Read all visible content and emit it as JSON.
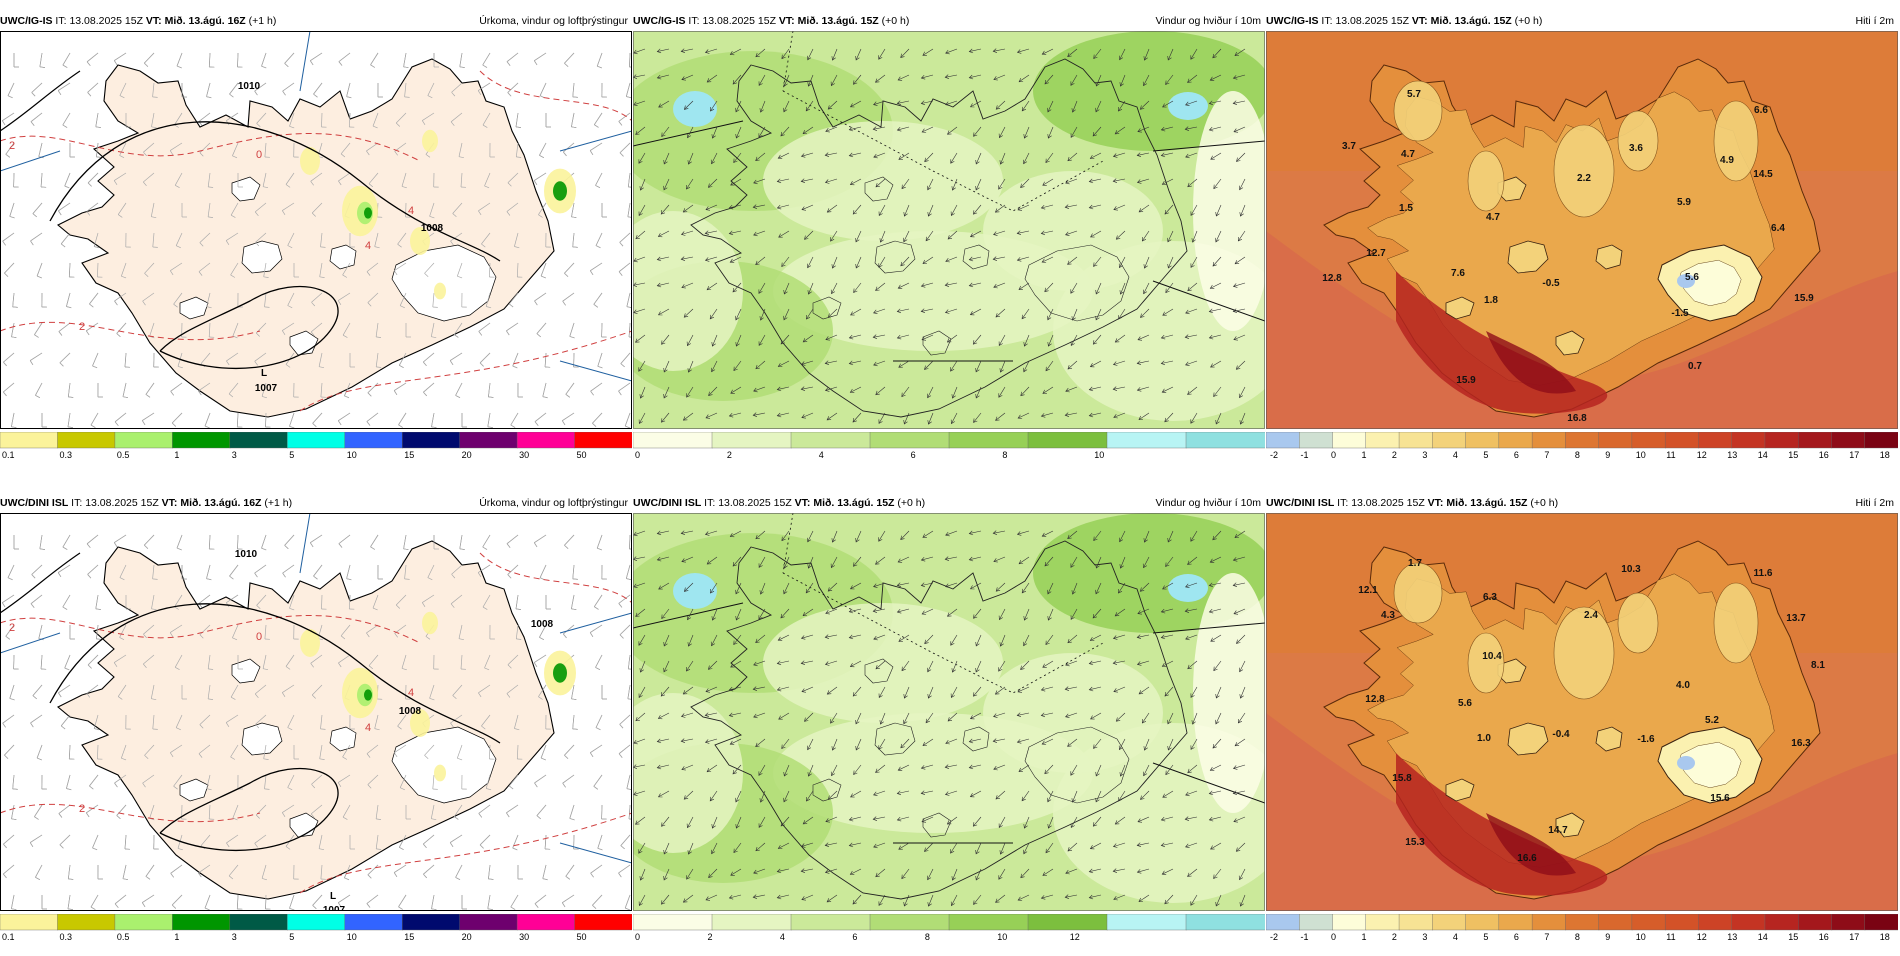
{
  "rows": [
    {
      "model": "UWC/IG-IS",
      "it_label": "IT:",
      "it": "13.08.2025 15Z",
      "vt_label": "VT:",
      "panels": [
        {
          "kind": "precip",
          "vt": "Mið. 13.ágú. 16Z",
          "lead": "(+1 h)",
          "title": "Úrkoma, vindur og loftþrýstingur",
          "legend_colors": [
            "#fbf39b",
            "#c8c800",
            "#aaf06e",
            "#009600",
            "#005a46",
            "#00ffe6",
            "#3264ff",
            "#000a6e",
            "#6e006e",
            "#ff0096",
            "#ff0000"
          ],
          "legend_ticks": [
            "0.1",
            "0.3",
            "0.5",
            "1",
            "3",
            "5",
            "10",
            "15",
            "20",
            "30",
            "50"
          ],
          "pressure_labels": [
            {
              "text": "1008"
            },
            {
              "text": "1007"
            },
            {
              "text": "1010"
            },
            {
              "text": "L"
            }
          ],
          "isotherm_labels": [
            "2",
            "4",
            "0",
            "2",
            "4"
          ]
        },
        {
          "kind": "wind",
          "vt": "Mið. 13.ágú. 15Z",
          "lead": "(+0 h)",
          "title": "Vindur og hviður í 10m",
          "legend_colors": [
            "#fbfde6",
            "#e5f5c2",
            "#cbe99a",
            "#b1dd76",
            "#97d057",
            "#7cbf3e",
            "#b8f4f4",
            "#8fe0e0"
          ],
          "legend_ticks": [
            "0",
            "2",
            "4",
            "6",
            "8",
            "10"
          ]
        },
        {
          "kind": "temp",
          "vt": "Mið. 13.ágú. 15Z",
          "lead": "(+0 h)",
          "title": "Hiti í 2m",
          "legend_colors": [
            "#a9c8ee",
            "#cfe0d2",
            "#fdfdd9",
            "#fbf1b0",
            "#f7e394",
            "#f3d27a",
            "#efc062",
            "#eaa84c",
            "#e48f3c",
            "#dd7632",
            "#d9682d",
            "#d65d2a",
            "#d35228",
            "#cd4326",
            "#c43423",
            "#b62520",
            "#a4181c",
            "#8e0c18",
            "#7a0313"
          ],
          "legend_ticks": [
            "-2",
            "-1",
            "0",
            "1",
            "2",
            "3",
            "4",
            "5",
            "6",
            "7",
            "8",
            "9",
            "10",
            "11",
            "12",
            "13",
            "14",
            "15",
            "16",
            "17",
            "18"
          ],
          "values": [
            {
              "text": "5.7"
            },
            {
              "text": "3.7"
            },
            {
              "text": "4.7"
            },
            {
              "text": "2.2"
            },
            {
              "text": "3.6"
            },
            {
              "text": "6.6"
            },
            {
              "text": "4.9"
            },
            {
              "text": "14.5"
            },
            {
              "text": "5.9"
            },
            {
              "text": "6.4"
            },
            {
              "text": "1.5"
            },
            {
              "text": "4.7"
            },
            {
              "text": "12.7"
            },
            {
              "text": "12.8"
            },
            {
              "text": "7.6"
            },
            {
              "text": "1.8"
            },
            {
              "text": "-0.5"
            },
            {
              "text": "5.6"
            },
            {
              "text": "15.9"
            },
            {
              "text": "-1.5"
            },
            {
              "text": "15.9"
            },
            {
              "text": "0.7"
            },
            {
              "text": "16.8"
            }
          ]
        }
      ]
    },
    {
      "model": "UWC/DINI ISL",
      "it_label": "IT:",
      "it": "13.08.2025 15Z",
      "vt_label": "VT:",
      "panels": [
        {
          "kind": "precip",
          "vt": "Mið. 13.ágú. 16Z",
          "lead": "(+1 h)",
          "title": "Úrkoma, vindur og loftþrýstingur",
          "legend_colors": [
            "#fbf39b",
            "#c8c800",
            "#aaf06e",
            "#009600",
            "#005a46",
            "#00ffe6",
            "#3264ff",
            "#000a6e",
            "#6e006e",
            "#ff0096",
            "#ff0000"
          ],
          "legend_ticks": [
            "0.1",
            "0.3",
            "0.5",
            "1",
            "3",
            "5",
            "10",
            "15",
            "20",
            "30",
            "50"
          ],
          "pressure_labels": [
            {
              "text": "1008"
            },
            {
              "text": "1007"
            },
            {
              "text": "1010"
            },
            {
              "text": "L"
            },
            {
              "text": "1008"
            }
          ],
          "isotherm_labels": [
            "2",
            "4",
            "0",
            "2",
            "4"
          ]
        },
        {
          "kind": "wind",
          "vt": "Mið. 13.ágú. 15Z",
          "lead": "(+0 h)",
          "title": "Vindur og hviður í 10m",
          "legend_colors": [
            "#fbfde6",
            "#e5f5c2",
            "#cbe99a",
            "#b1dd76",
            "#97d057",
            "#7cbf3e",
            "#b8f4f4",
            "#8fe0e0"
          ],
          "legend_ticks": [
            "0",
            "2",
            "4",
            "6",
            "8",
            "10",
            "12"
          ]
        },
        {
          "kind": "temp",
          "vt": "Mið. 13.ágú. 15Z",
          "lead": "(+0 h)",
          "title": "Hiti í 2m",
          "legend_colors": [
            "#a9c8ee",
            "#cfe0d2",
            "#fdfdd9",
            "#fbf1b0",
            "#f7e394",
            "#f3d27a",
            "#efc062",
            "#eaa84c",
            "#e48f3c",
            "#dd7632",
            "#d9682d",
            "#d65d2a",
            "#d35228",
            "#cd4326",
            "#c43423",
            "#b62520",
            "#a4181c",
            "#8e0c18",
            "#7a0313"
          ],
          "legend_ticks": [
            "-2",
            "-1",
            "0",
            "1",
            "2",
            "3",
            "4",
            "5",
            "6",
            "7",
            "8",
            "9",
            "10",
            "11",
            "12",
            "13",
            "14",
            "15",
            "16",
            "17",
            "18"
          ],
          "values": [
            {
              "text": "1.7"
            },
            {
              "text": "10.3"
            },
            {
              "text": "11.6"
            },
            {
              "text": "12.1"
            },
            {
              "text": "6.3"
            },
            {
              "text": "2.4"
            },
            {
              "text": "4.3"
            },
            {
              "text": "13.7"
            },
            {
              "text": "10.4"
            },
            {
              "text": "8.1"
            },
            {
              "text": "4.0"
            },
            {
              "text": "12.8"
            },
            {
              "text": "5.6"
            },
            {
              "text": "5.2"
            },
            {
              "text": "1.0"
            },
            {
              "text": "-0.4"
            },
            {
              "text": "-1.6"
            },
            {
              "text": "16.3"
            },
            {
              "text": "15.8"
            },
            {
              "text": "15.6"
            },
            {
              "text": "15.3"
            },
            {
              "text": "14.7"
            },
            {
              "text": "16.6"
            }
          ]
        }
      ]
    }
  ]
}
